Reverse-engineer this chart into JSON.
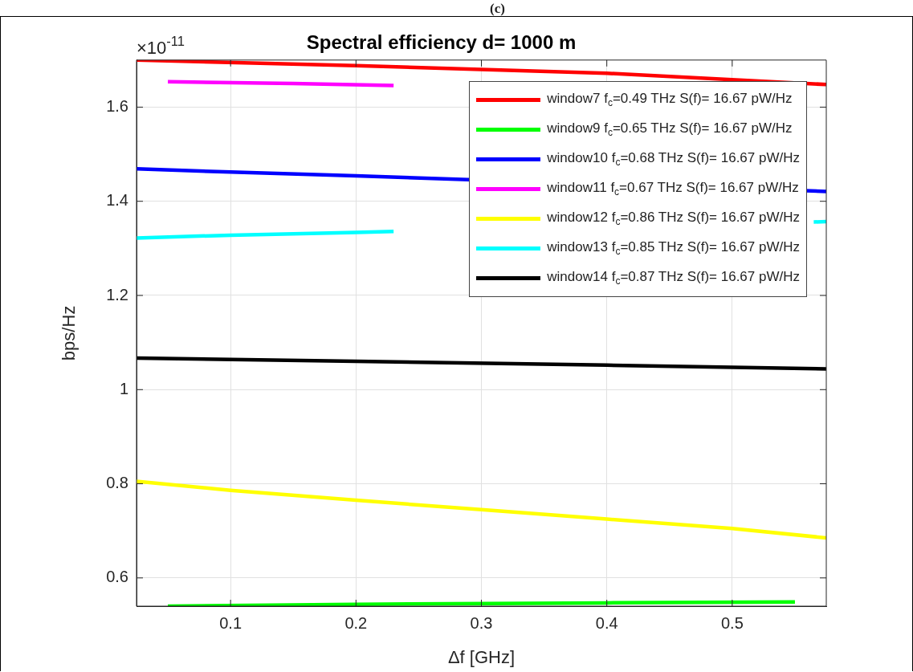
{
  "chart_data": {
    "type": "line",
    "title": "Spectral efficiency d= 1000 m",
    "xlabel": "Δf [GHz]",
    "ylabel": "bps/Hz",
    "annotations": [
      "(c)",
      "×10$^{-11}$"
    ],
    "xlim": [
      0.025,
      0.575
    ],
    "xticks": [
      0.1,
      0.2,
      0.3,
      0.4,
      0.5
    ],
    "ylim": [
      0.54,
      1.7
    ],
    "yticks": [
      0.6,
      0.8,
      1,
      1.2,
      1.4,
      1.6
    ],
    "grid": true,
    "legend": "top right",
    "marker": "none",
    "line_style": "solid",
    "series": [
      {
        "name": "window7 f$_{c}$=0.49 THz S(f)= 16.67 pW/Hz",
        "color": "#ff0000",
        "x": [
          0.025,
          0.2,
          0.4,
          0.575
        ],
        "values": [
          1.7,
          1.688,
          1.672,
          1.648
        ]
      },
      {
        "name": "window9 f$_{c}$=0.65 THz S(f)= 16.67 pW/Hz",
        "color": "#00ff00",
        "x": [
          0.05,
          0.2,
          0.4,
          0.55
        ],
        "values": [
          0.54,
          0.544,
          0.547,
          0.549
        ]
      },
      {
        "name": "window10 f$_{c}$=0.68 THz S(f)= 16.67 pW/Hz",
        "color": "#0000ff",
        "x": [
          0.025,
          0.1,
          0.2,
          0.575
        ],
        "values": [
          1.469,
          1.462,
          1.454,
          1.421
        ]
      },
      {
        "name": "window11 f$_{c}$=0.67 THz S(f)= 16.67 pW/Hz",
        "color": "#ff00ff",
        "x": [
          0.05,
          0.15,
          0.23
        ],
        "values": [
          1.654,
          1.65,
          1.646
        ]
      },
      {
        "name": "window12 f$_{c}$=0.86 THz S(f)= 16.67 pW/Hz",
        "color": "#ffff00",
        "x": [
          0.025,
          0.1,
          0.2,
          0.3,
          0.4,
          0.5,
          0.575
        ],
        "values": [
          0.805,
          0.786,
          0.765,
          0.745,
          0.725,
          0.705,
          0.685
        ]
      },
      {
        "name": "window13 f$_{c}$=0.85 THz S(f)= 16.67 pW/Hz",
        "color": "#00ffff",
        "x": [
          0.025,
          0.1,
          0.2,
          0.23,
          0.4,
          0.565,
          0.575
        ],
        "values": [
          1.322,
          1.328,
          1.334,
          1.336,
          null,
          1.356,
          1.357
        ]
      },
      {
        "name": "window14 f$_{c}$=0.87 THz S(f)= 16.67 pW/Hz",
        "color": "#000000",
        "x": [
          0.025,
          0.2,
          0.4,
          0.575
        ],
        "values": [
          1.067,
          1.06,
          1.052,
          1.044
        ]
      }
    ]
  }
}
